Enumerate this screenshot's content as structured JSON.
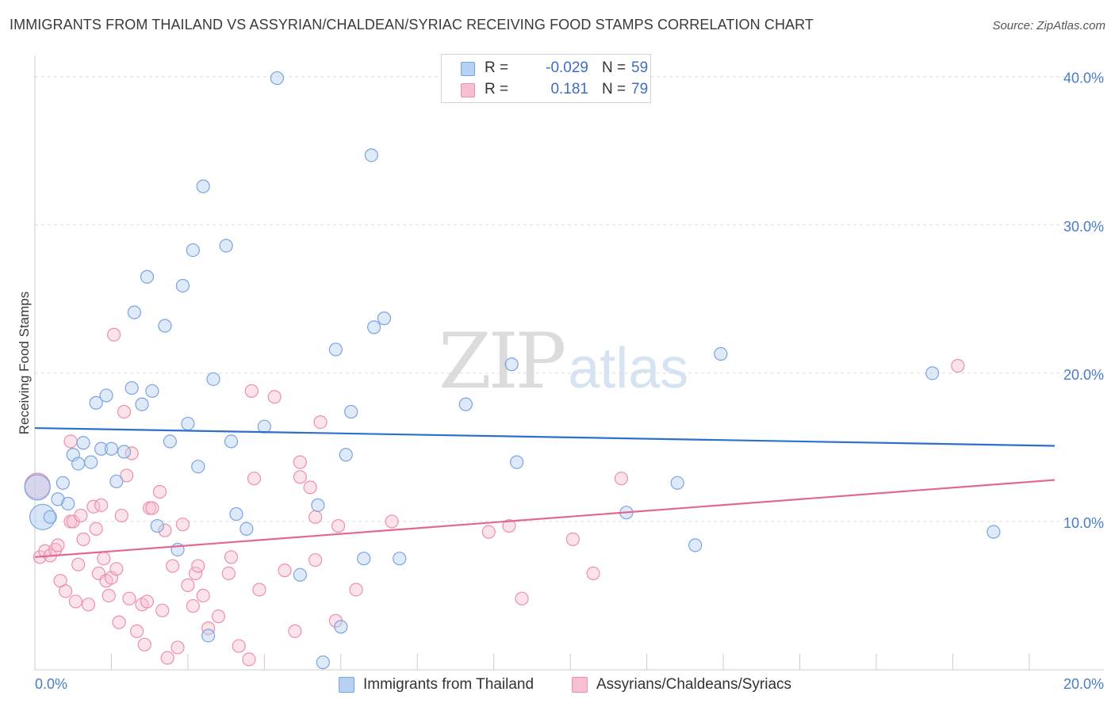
{
  "title": "IMMIGRANTS FROM THAILAND VS ASSYRIAN/CHALDEAN/SYRIAC RECEIVING FOOD STAMPS CORRELATION CHART",
  "source": "Source: ZipAtlas.com",
  "watermark": {
    "zip": "ZIP",
    "atlas": "atlas"
  },
  "legend": {
    "r_label": "R =",
    "n_label": "N =",
    "series": [
      {
        "r": "-0.029",
        "n": "59"
      },
      {
        "r": "0.181",
        "n": "79"
      }
    ]
  },
  "colors": {
    "blue_fill": "#b8d0f2",
    "blue_edge": "#7aa4e0",
    "blue_line": "#2f6fcc",
    "pink_fill": "#f7c0d1",
    "pink_edge": "#ec8fae",
    "pink_line": "#e26893",
    "grid": "#dcdcdc",
    "tick_text": "#4a7cc9"
  },
  "chart_data": {
    "type": "scatter",
    "title": "IMMIGRANTS FROM THAILAND VS ASSYRIAN/CHALDEAN/SYRIAC RECEIVING FOOD STAMPS CORRELATION CHART",
    "xlabel": "",
    "ylabel": "Receiving Food Stamps",
    "xlim": [
      0,
      20
    ],
    "ylim": [
      0,
      41
    ],
    "x_tick_labels": [
      "0.0%",
      "20.0%"
    ],
    "y_ticks": [
      10,
      20,
      30,
      40
    ],
    "y_tick_labels": [
      "10.0%",
      "20.0%",
      "30.0%",
      "40.0%"
    ],
    "grid": true,
    "legend_position": "bottom",
    "series": [
      {
        "name": "Immigrants from Thailand",
        "color": "#7aa4e0",
        "trend": {
          "x": [
            0,
            20
          ],
          "y": [
            16.3,
            15.1
          ]
        },
        "points": [
          {
            "x": 0.05,
            "y": 12.3,
            "big": true
          },
          {
            "x": 0.15,
            "y": 10.3,
            "big": true
          },
          {
            "x": 0.3,
            "y": 10.3
          },
          {
            "x": 0.45,
            "y": 11.5
          },
          {
            "x": 0.55,
            "y": 12.6
          },
          {
            "x": 0.65,
            "y": 11.2
          },
          {
            "x": 0.75,
            "y": 14.5
          },
          {
            "x": 0.85,
            "y": 13.9
          },
          {
            "x": 0.95,
            "y": 15.3
          },
          {
            "x": 1.1,
            "y": 14.0
          },
          {
            "x": 1.2,
            "y": 18.0
          },
          {
            "x": 1.3,
            "y": 14.9
          },
          {
            "x": 1.4,
            "y": 18.5
          },
          {
            "x": 1.5,
            "y": 14.9
          },
          {
            "x": 1.6,
            "y": 12.7
          },
          {
            "x": 1.75,
            "y": 14.7
          },
          {
            "x": 1.9,
            "y": 19.0
          },
          {
            "x": 1.95,
            "y": 24.1
          },
          {
            "x": 2.1,
            "y": 17.9
          },
          {
            "x": 2.2,
            "y": 26.5
          },
          {
            "x": 2.3,
            "y": 18.8
          },
          {
            "x": 2.4,
            "y": 9.7
          },
          {
            "x": 2.55,
            "y": 23.2
          },
          {
            "x": 2.65,
            "y": 15.4
          },
          {
            "x": 2.8,
            "y": 8.1
          },
          {
            "x": 2.9,
            "y": 25.9
          },
          {
            "x": 3.0,
            "y": 16.6
          },
          {
            "x": 3.1,
            "y": 28.3
          },
          {
            "x": 3.2,
            "y": 13.7
          },
          {
            "x": 3.3,
            "y": 32.6
          },
          {
            "x": 3.4,
            "y": 2.3
          },
          {
            "x": 3.5,
            "y": 19.6
          },
          {
            "x": 3.75,
            "y": 28.6
          },
          {
            "x": 3.85,
            "y": 15.4
          },
          {
            "x": 3.95,
            "y": 10.5
          },
          {
            "x": 4.15,
            "y": 9.5
          },
          {
            "x": 4.5,
            "y": 16.4
          },
          {
            "x": 4.75,
            "y": 39.9
          },
          {
            "x": 5.2,
            "y": 6.4
          },
          {
            "x": 5.55,
            "y": 11.1
          },
          {
            "x": 5.65,
            "y": 0.5
          },
          {
            "x": 5.9,
            "y": 21.6
          },
          {
            "x": 6.0,
            "y": 2.9
          },
          {
            "x": 6.1,
            "y": 14.5
          },
          {
            "x": 6.2,
            "y": 17.4
          },
          {
            "x": 6.45,
            "y": 7.5
          },
          {
            "x": 6.6,
            "y": 34.7
          },
          {
            "x": 6.65,
            "y": 23.1
          },
          {
            "x": 6.85,
            "y": 23.7
          },
          {
            "x": 7.15,
            "y": 7.5
          },
          {
            "x": 8.45,
            "y": 17.9
          },
          {
            "x": 9.35,
            "y": 20.6
          },
          {
            "x": 9.45,
            "y": 14.0
          },
          {
            "x": 11.6,
            "y": 10.6
          },
          {
            "x": 12.6,
            "y": 12.6
          },
          {
            "x": 12.95,
            "y": 8.4
          },
          {
            "x": 13.45,
            "y": 21.3
          },
          {
            "x": 17.6,
            "y": 20.0
          },
          {
            "x": 18.8,
            "y": 9.3
          }
        ]
      },
      {
        "name": "Assyrians/Chaldeans/Syriacs",
        "color": "#ec8fae",
        "trend": {
          "x": [
            0,
            20
          ],
          "y": [
            7.6,
            12.8
          ]
        },
        "points": [
          {
            "x": 0.05,
            "y": 12.4,
            "big": true
          },
          {
            "x": 0.1,
            "y": 7.6
          },
          {
            "x": 0.2,
            "y": 8.0
          },
          {
            "x": 0.3,
            "y": 7.7
          },
          {
            "x": 0.4,
            "y": 8.1
          },
          {
            "x": 0.45,
            "y": 8.4
          },
          {
            "x": 0.5,
            "y": 6.0
          },
          {
            "x": 0.6,
            "y": 5.3
          },
          {
            "x": 0.7,
            "y": 10.0
          },
          {
            "x": 0.75,
            "y": 10.0
          },
          {
            "x": 0.7,
            "y": 15.4
          },
          {
            "x": 0.8,
            "y": 4.6
          },
          {
            "x": 0.85,
            "y": 7.1
          },
          {
            "x": 0.9,
            "y": 10.4
          },
          {
            "x": 0.95,
            "y": 8.8
          },
          {
            "x": 1.05,
            "y": 4.4
          },
          {
            "x": 1.15,
            "y": 11.0
          },
          {
            "x": 1.2,
            "y": 9.5
          },
          {
            "x": 1.25,
            "y": 6.5
          },
          {
            "x": 1.3,
            "y": 11.1
          },
          {
            "x": 1.35,
            "y": 7.5
          },
          {
            "x": 1.4,
            "y": 6.0
          },
          {
            "x": 1.45,
            "y": 5.0
          },
          {
            "x": 1.5,
            "y": 6.2
          },
          {
            "x": 1.55,
            "y": 22.6
          },
          {
            "x": 1.6,
            "y": 6.8
          },
          {
            "x": 1.65,
            "y": 3.2
          },
          {
            "x": 1.7,
            "y": 10.4
          },
          {
            "x": 1.75,
            "y": 17.4
          },
          {
            "x": 1.8,
            "y": 13.1
          },
          {
            "x": 1.85,
            "y": 4.8
          },
          {
            "x": 1.9,
            "y": 14.6
          },
          {
            "x": 2.0,
            "y": 2.6
          },
          {
            "x": 2.1,
            "y": 4.4
          },
          {
            "x": 2.15,
            "y": 1.7
          },
          {
            "x": 2.2,
            "y": 4.6
          },
          {
            "x": 2.25,
            "y": 10.9
          },
          {
            "x": 2.3,
            "y": 10.9
          },
          {
            "x": 2.45,
            "y": 12.0
          },
          {
            "x": 2.5,
            "y": 4.0
          },
          {
            "x": 2.55,
            "y": 9.4
          },
          {
            "x": 2.6,
            "y": 0.8
          },
          {
            "x": 2.7,
            "y": 7.0
          },
          {
            "x": 2.8,
            "y": 1.5
          },
          {
            "x": 2.9,
            "y": 9.8
          },
          {
            "x": 3.0,
            "y": 5.7
          },
          {
            "x": 3.1,
            "y": 4.3
          },
          {
            "x": 3.15,
            "y": 6.5
          },
          {
            "x": 3.2,
            "y": 7.0
          },
          {
            "x": 3.3,
            "y": 5.0
          },
          {
            "x": 3.4,
            "y": 2.8
          },
          {
            "x": 3.6,
            "y": 3.6
          },
          {
            "x": 3.8,
            "y": 6.5
          },
          {
            "x": 3.85,
            "y": 7.6
          },
          {
            "x": 4.0,
            "y": 1.6
          },
          {
            "x": 4.2,
            "y": 0.7
          },
          {
            "x": 4.25,
            "y": 18.8
          },
          {
            "x": 4.3,
            "y": 12.9
          },
          {
            "x": 4.4,
            "y": 5.4
          },
          {
            "x": 4.7,
            "y": 18.4
          },
          {
            "x": 4.9,
            "y": 6.7
          },
          {
            "x": 5.1,
            "y": 2.6
          },
          {
            "x": 5.2,
            "y": 13.0
          },
          {
            "x": 5.2,
            "y": 14.0
          },
          {
            "x": 5.4,
            "y": 12.3
          },
          {
            "x": 5.5,
            "y": 10.3
          },
          {
            "x": 5.5,
            "y": 7.4
          },
          {
            "x": 5.6,
            "y": 16.7
          },
          {
            "x": 5.9,
            "y": 3.3
          },
          {
            "x": 5.95,
            "y": 9.7
          },
          {
            "x": 6.3,
            "y": 5.4
          },
          {
            "x": 7.0,
            "y": 10.0
          },
          {
            "x": 8.9,
            "y": 9.3
          },
          {
            "x": 9.3,
            "y": 9.7
          },
          {
            "x": 9.55,
            "y": 4.8
          },
          {
            "x": 10.55,
            "y": 8.8
          },
          {
            "x": 10.95,
            "y": 6.5
          },
          {
            "x": 11.5,
            "y": 12.9
          },
          {
            "x": 18.1,
            "y": 20.5
          }
        ]
      }
    ]
  }
}
